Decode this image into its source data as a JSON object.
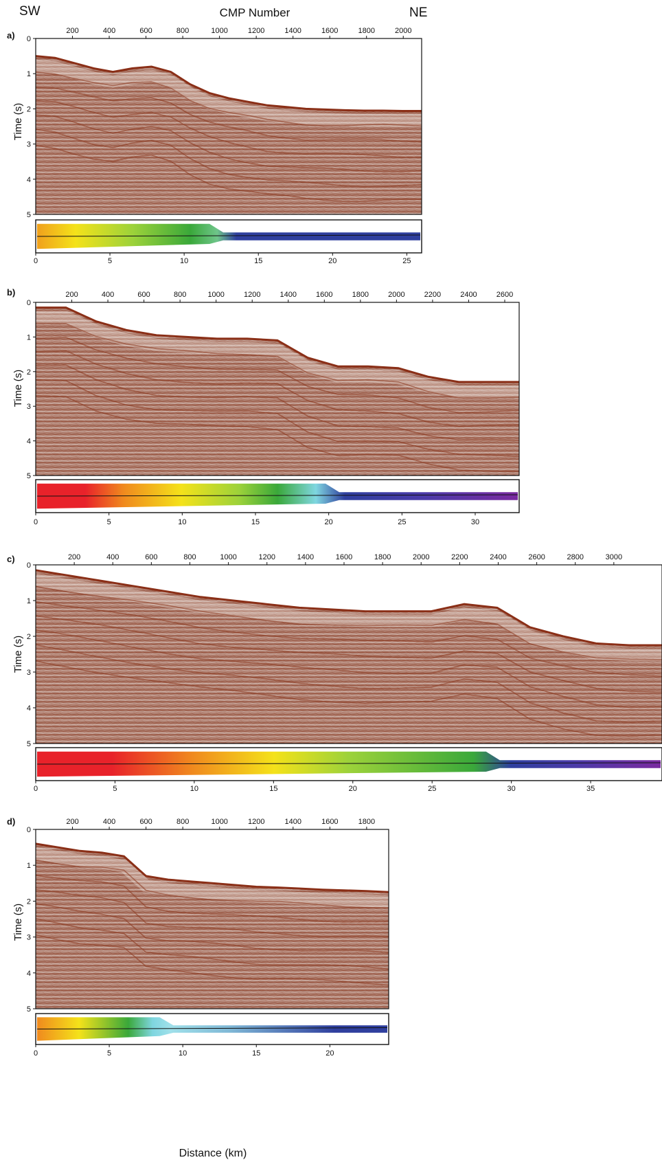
{
  "header": {
    "left_direction": "SW",
    "right_direction": "NE",
    "top_axis_title": "CMP Number"
  },
  "bottom_axis_title": "Distance (km)",
  "colors": {
    "seismic_background": "#b48a7c",
    "seismic_reflector": "#8c3a22",
    "seismic_light": "#f3ebe6",
    "seafloor": "#8a2f17",
    "track_line": "#111111",
    "frame": "#111111",
    "bathymetry_ramp": [
      "#e8222a",
      "#f08a1e",
      "#f4e21a",
      "#9cd23a",
      "#3aa83a",
      "#7fd6e0",
      "#2f3f9e",
      "#7a2aa0"
    ]
  },
  "panels": [
    {
      "letter": "a)",
      "cmp_ticks": [
        "200",
        "400",
        "600",
        "800",
        "1000",
        "1200",
        "1400",
        "1600",
        "1800",
        "2000"
      ],
      "cmp_max": 2100,
      "time_ticks": [
        "0",
        "1",
        "2",
        "3",
        "4",
        "5"
      ],
      "time_axis_title": "Time (s)",
      "distance_ticks": [
        "0",
        "5",
        "10",
        "15",
        "20",
        "25"
      ],
      "distance_max_km": 26,
      "seafloor_profile_s": [
        0.5,
        0.55,
        0.7,
        0.85,
        0.95,
        0.85,
        0.8,
        0.95,
        1.3,
        1.55,
        1.7,
        1.8,
        1.9,
        1.95,
        2.0,
        2.02,
        2.04,
        2.05,
        2.05,
        2.06,
        2.06
      ],
      "bathymetry_colors": [
        "#f0a01c",
        "#f4e21a",
        "#9cd23a",
        "#3aa83a",
        "#6fc58a",
        "#2f3f9e",
        "#2f3f9e"
      ],
      "bathymetry_stops": [
        0,
        0.1,
        0.25,
        0.4,
        0.47,
        0.52,
        1
      ]
    },
    {
      "letter": "b)",
      "cmp_ticks": [
        "200",
        "400",
        "600",
        "800",
        "1000",
        "1200",
        "1400",
        "1600",
        "1800",
        "2000",
        "2200",
        "2400",
        "2600"
      ],
      "cmp_max": 2680,
      "time_ticks": [
        "0",
        "1",
        "2",
        "3",
        "4",
        "5"
      ],
      "time_axis_title": "Time (s)",
      "distance_ticks": [
        "0",
        "5",
        "10",
        "15",
        "20",
        "25",
        "30"
      ],
      "distance_max_km": 33,
      "seafloor_profile_s": [
        0.15,
        0.15,
        0.55,
        0.8,
        0.95,
        1.0,
        1.05,
        1.05,
        1.1,
        1.6,
        1.85,
        1.85,
        1.9,
        2.15,
        2.3,
        2.3,
        2.3
      ],
      "bathymetry_colors": [
        "#e8222a",
        "#e8222a",
        "#f08a1e",
        "#f4e21a",
        "#9cd23a",
        "#3aa83a",
        "#7fd6e0",
        "#2f3f9e",
        "#4a3aa8",
        "#7a2aa0"
      ],
      "bathymetry_stops": [
        0,
        0.1,
        0.18,
        0.3,
        0.42,
        0.5,
        0.58,
        0.64,
        0.8,
        1
      ]
    },
    {
      "letter": "c)",
      "cmp_ticks": [
        "200",
        "400",
        "600",
        "800",
        "1000",
        "1200",
        "1400",
        "1600",
        "1800",
        "2000",
        "2200",
        "2400",
        "2600",
        "2800",
        "3000"
      ],
      "cmp_max": 3250,
      "time_ticks": [
        "0",
        "1",
        "2",
        "3",
        "4",
        "5"
      ],
      "time_axis_title": "Time (s)",
      "distance_ticks": [
        "0",
        "5",
        "10",
        "15",
        "20",
        "25",
        "30",
        "35"
      ],
      "distance_max_km": 39.5,
      "seafloor_profile_s": [
        0.15,
        0.3,
        0.45,
        0.6,
        0.75,
        0.9,
        1.0,
        1.1,
        1.2,
        1.25,
        1.3,
        1.3,
        1.3,
        1.1,
        1.2,
        1.75,
        2.0,
        2.2,
        2.25,
        2.25
      ],
      "bathymetry_colors": [
        "#e8222a",
        "#e8222a",
        "#f08a1e",
        "#f4e21a",
        "#9cd23a",
        "#3aa83a",
        "#2f3f9e",
        "#4a3aa8",
        "#7a2aa0"
      ],
      "bathymetry_stops": [
        0,
        0.12,
        0.25,
        0.38,
        0.5,
        0.7,
        0.76,
        0.86,
        1
      ]
    },
    {
      "letter": "d)",
      "cmp_ticks": [
        "200",
        "400",
        "600",
        "800",
        "1000",
        "1200",
        "1400",
        "1600",
        "1800"
      ],
      "cmp_max": 1920,
      "time_ticks": [
        "0",
        "1",
        "2",
        "3",
        "4",
        "5"
      ],
      "time_axis_title": "Time (s)",
      "distance_ticks": [
        "0",
        "5",
        "10",
        "15",
        "20"
      ],
      "distance_max_km": 24,
      "seafloor_profile_s": [
        0.4,
        0.5,
        0.6,
        0.65,
        0.75,
        1.3,
        1.4,
        1.45,
        1.5,
        1.55,
        1.6,
        1.62,
        1.65,
        1.68,
        1.7,
        1.72,
        1.75
      ],
      "bathymetry_colors": [
        "#f08a1e",
        "#f4e21a",
        "#3aa83a",
        "#7fd6e0",
        "#9fe0ea",
        "#7fb8d6",
        "#2f3f9e",
        "#2f3f9e"
      ],
      "bathymetry_stops": [
        0,
        0.12,
        0.26,
        0.33,
        0.38,
        0.55,
        0.85,
        1
      ]
    }
  ]
}
